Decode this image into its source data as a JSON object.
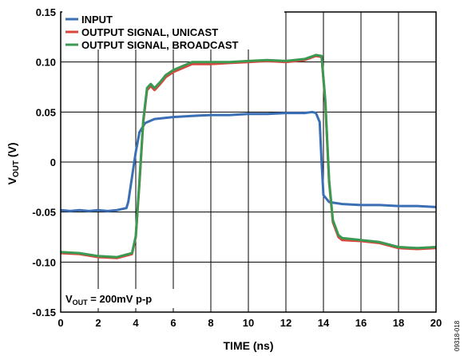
{
  "chart_data": {
    "type": "line",
    "xlabel": "TIME (ns)",
    "ylabel_main": "V",
    "ylabel_sub": "OUT",
    "ylabel_unit": " (V)",
    "xlim": [
      0,
      20
    ],
    "ylim": [
      -0.15,
      0.15
    ],
    "xticks": [
      "0",
      "2",
      "4",
      "6",
      "8",
      "10",
      "12",
      "14",
      "16",
      "18",
      "20"
    ],
    "yticks": [
      "0.15",
      "0.10",
      "0.05",
      "0",
      "-0.05",
      "-0.10",
      "-0.15"
    ],
    "grid": true,
    "legend_position": "top-left",
    "annotation": {
      "main": "V",
      "sub": "OUT",
      "rest": " = 200mV p-p"
    },
    "figure_id": "09318-018",
    "series": [
      {
        "name": "INPUT",
        "color": "#3a6fb5",
        "x": [
          0,
          0.5,
          1,
          1.5,
          2,
          2.5,
          3,
          3.5,
          3.6,
          3.8,
          4.0,
          4.2,
          4.5,
          5.0,
          5.5,
          6,
          7,
          8,
          9,
          10,
          11,
          12,
          13,
          13.4,
          13.6,
          13.8,
          13.9,
          14.0,
          14.3,
          15,
          16,
          17,
          18,
          19,
          20
        ],
        "y": [
          -0.048,
          -0.049,
          -0.048,
          -0.049,
          -0.048,
          -0.049,
          -0.048,
          -0.046,
          -0.04,
          -0.015,
          0.01,
          0.03,
          0.039,
          0.043,
          0.044,
          0.045,
          0.046,
          0.047,
          0.047,
          0.048,
          0.048,
          0.049,
          0.049,
          0.05,
          0.049,
          0.04,
          0.0,
          -0.033,
          -0.04,
          -0.042,
          -0.043,
          -0.043,
          -0.044,
          -0.044,
          -0.045
        ]
      },
      {
        "name": "OUTPUT SIGNAL, UNICAST",
        "color": "#d9463e",
        "x": [
          0,
          1,
          2,
          3,
          3.8,
          4.0,
          4.2,
          4.4,
          4.6,
          4.8,
          5.0,
          5.3,
          5.6,
          6,
          7,
          8,
          9,
          10,
          11,
          12,
          13,
          13.6,
          13.9,
          14.1,
          14.3,
          14.5,
          14.8,
          15,
          16,
          17,
          18,
          19,
          20
        ],
        "y": [
          -0.091,
          -0.092,
          -0.095,
          -0.096,
          -0.092,
          -0.075,
          -0.02,
          0.04,
          0.072,
          0.076,
          0.072,
          0.078,
          0.085,
          0.09,
          0.098,
          0.098,
          0.099,
          0.1,
          0.101,
          0.1,
          0.102,
          0.106,
          0.105,
          0.06,
          -0.02,
          -0.06,
          -0.075,
          -0.078,
          -0.079,
          -0.081,
          -0.086,
          -0.087,
          -0.086
        ]
      },
      {
        "name": "OUTPUT SIGNAL, BROADCAST",
        "color": "#3a9a52",
        "x": [
          0,
          1,
          2,
          3,
          3.8,
          4.0,
          4.2,
          4.4,
          4.6,
          4.8,
          5.0,
          5.3,
          5.6,
          6,
          7,
          8,
          9,
          10,
          11,
          12,
          13,
          13.6,
          13.9,
          14.1,
          14.3,
          14.5,
          14.8,
          15,
          16,
          17,
          18,
          19,
          20
        ],
        "y": [
          -0.09,
          -0.091,
          -0.094,
          -0.095,
          -0.091,
          -0.074,
          -0.018,
          0.042,
          0.074,
          0.078,
          0.074,
          0.08,
          0.087,
          0.092,
          0.1,
          0.1,
          0.1,
          0.101,
          0.102,
          0.101,
          0.103,
          0.107,
          0.106,
          0.062,
          -0.018,
          -0.058,
          -0.073,
          -0.076,
          -0.078,
          -0.08,
          -0.085,
          -0.086,
          -0.085
        ]
      }
    ]
  }
}
